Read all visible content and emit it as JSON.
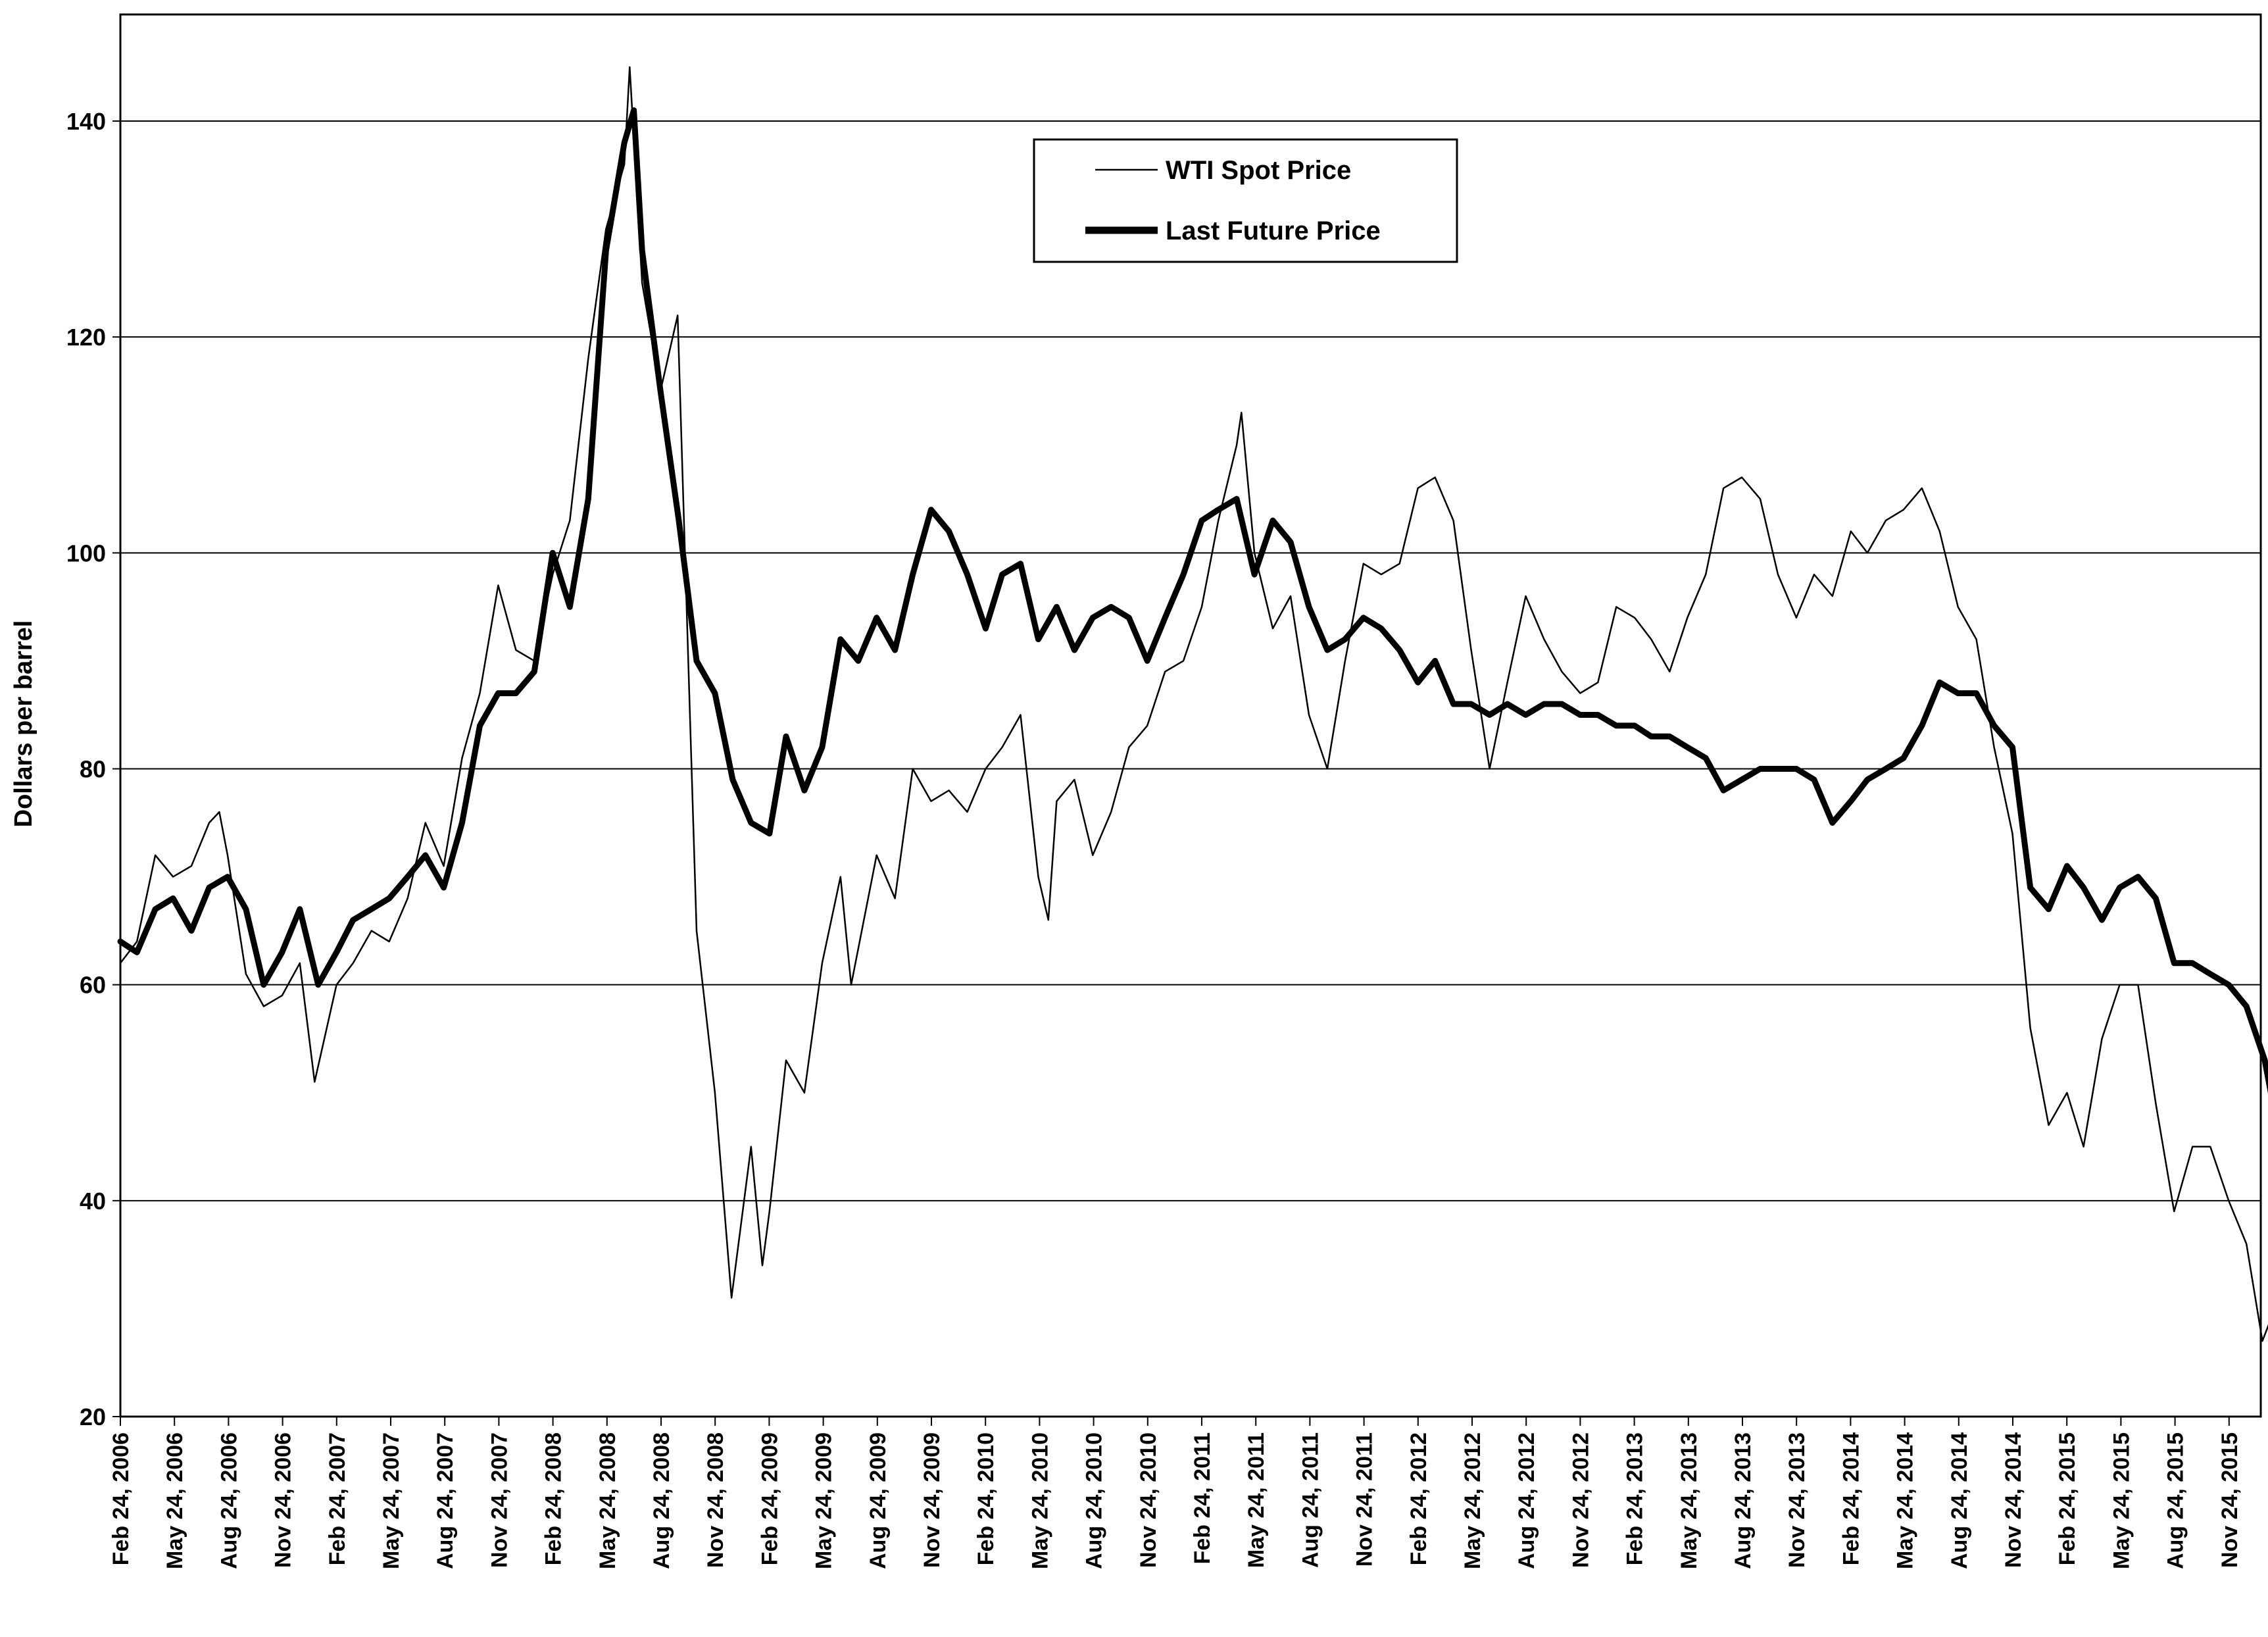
{
  "chart_data": {
    "type": "line",
    "title": "",
    "xlabel": "",
    "ylabel": "Dollars per barrel",
    "ylim": [
      20,
      145
    ],
    "yticks": [
      20,
      40,
      60,
      80,
      100,
      120,
      140
    ],
    "grid": "horizontal",
    "legend_position": "top-center",
    "xticks": [
      "Feb 24, 2006",
      "May 24, 2006",
      "Aug 24, 2006",
      "Nov 24, 2006",
      "Feb 24, 2007",
      "May 24, 2007",
      "Aug 24, 2007",
      "Nov 24, 2007",
      "Feb 24, 2008",
      "May 24, 2008",
      "Aug 24, 2008",
      "Nov 24, 2008",
      "Feb 24, 2009",
      "May 24, 2009",
      "Aug 24, 2009",
      "Nov 24, 2009",
      "Feb 24, 2010",
      "May 24, 2010",
      "Aug 24, 2010",
      "Nov 24, 2010",
      "Feb 24, 2011",
      "May 24, 2011",
      "Aug 24, 2011",
      "Nov 24, 2011",
      "Feb 24, 2012",
      "May 24, 2012",
      "Aug 24, 2012",
      "Nov 24, 2012",
      "Feb 24, 2013",
      "May 24, 2013",
      "Aug 24, 2013",
      "Nov 24, 2013",
      "Feb 24, 2014",
      "May 24, 2014",
      "Aug 24, 2014",
      "Nov 24, 2014",
      "Feb 24, 2015",
      "May 24, 2015",
      "Aug 24, 2015",
      "Nov 24, 2015"
    ],
    "x_last": "Feb 24, 2016",
    "series": [
      {
        "name": "WTI Spot Price",
        "style": "thin",
        "color": "#000000",
        "points": [
          [
            "Feb 24, 2006",
            62
          ],
          [
            "Mar 24, 2006",
            64
          ],
          [
            "Apr 24, 2006",
            72
          ],
          [
            "May 24, 2006",
            70
          ],
          [
            "Jun 24, 2006",
            71
          ],
          [
            "Jul 24, 2006",
            75
          ],
          [
            "Aug 10, 2006",
            76
          ],
          [
            "Aug 24, 2006",
            72
          ],
          [
            "Sep 24, 2006",
            61
          ],
          [
            "Oct 24, 2006",
            58
          ],
          [
            "Nov 24, 2006",
            59
          ],
          [
            "Dec 24, 2006",
            62
          ],
          [
            "Jan 18, 2007",
            51
          ],
          [
            "Feb 24, 2007",
            60
          ],
          [
            "Mar 24, 2007",
            62
          ],
          [
            "Apr 24, 2007",
            65
          ],
          [
            "May 24, 2007",
            64
          ],
          [
            "Jun 24, 2007",
            68
          ],
          [
            "Jul 24, 2007",
            75
          ],
          [
            "Aug 24, 2007",
            71
          ],
          [
            "Sep 24, 2007",
            81
          ],
          [
            "Oct 24, 2007",
            87
          ],
          [
            "Nov 24, 2007",
            97
          ],
          [
            "Dec 24, 2007",
            91
          ],
          [
            "Jan 24, 2008",
            90
          ],
          [
            "Feb 24, 2008",
            98
          ],
          [
            "Mar 24, 2008",
            103
          ],
          [
            "Apr 24, 2008",
            118
          ],
          [
            "May 24, 2008",
            130
          ],
          [
            "Jun 24, 2008",
            136
          ],
          [
            "Jul 3, 2008",
            145
          ],
          [
            "Jul 24, 2008",
            125
          ],
          [
            "Aug 24, 2008",
            115
          ],
          [
            "Sep 22, 2008",
            122
          ],
          [
            "Oct 24, 2008",
            65
          ],
          [
            "Nov 24, 2008",
            50
          ],
          [
            "Dec 22, 2008",
            31
          ],
          [
            "Jan 24, 2009",
            45
          ],
          [
            "Feb 12, 2009",
            34
          ],
          [
            "Feb 24, 2009",
            39
          ],
          [
            "Mar 24, 2009",
            53
          ],
          [
            "Apr 24, 2009",
            50
          ],
          [
            "May 24, 2009",
            62
          ],
          [
            "Jun 24, 2009",
            70
          ],
          [
            "Jul 12, 2009",
            60
          ],
          [
            "Aug 24, 2009",
            72
          ],
          [
            "Sep 24, 2009",
            68
          ],
          [
            "Oct 24, 2009",
            80
          ],
          [
            "Nov 24, 2009",
            77
          ],
          [
            "Dec 24, 2009",
            78
          ],
          [
            "Jan 24, 2010",
            76
          ],
          [
            "Feb 24, 2010",
            80
          ],
          [
            "Mar 24, 2010",
            82
          ],
          [
            "Apr 24, 2010",
            85
          ],
          [
            "May 24, 2010",
            70
          ],
          [
            "Jun 10, 2010",
            66
          ],
          [
            "Jun 24, 2010",
            77
          ],
          [
            "Jul 24, 2010",
            79
          ],
          [
            "Aug 24, 2010",
            72
          ],
          [
            "Sep 24, 2010",
            76
          ],
          [
            "Oct 24, 2010",
            82
          ],
          [
            "Nov 24, 2010",
            84
          ],
          [
            "Dec 24, 2010",
            89
          ],
          [
            "Jan 24, 2011",
            90
          ],
          [
            "Feb 24, 2011",
            95
          ],
          [
            "Mar 24, 2011",
            103
          ],
          [
            "Apr 24, 2011",
            110
          ],
          [
            "May 2, 2011",
            113
          ],
          [
            "May 24, 2011",
            100
          ],
          [
            "Jun 24, 2011",
            93
          ],
          [
            "Jul 24, 2011",
            96
          ],
          [
            "Aug 24, 2011",
            85
          ],
          [
            "Sep 24, 2011",
            80
          ],
          [
            "Oct 24, 2011",
            90
          ],
          [
            "Nov 24, 2011",
            99
          ],
          [
            "Dec 24, 2011",
            98
          ],
          [
            "Jan 24, 2012",
            99
          ],
          [
            "Feb 24, 2012",
            106
          ],
          [
            "Mar 24, 2012",
            107
          ],
          [
            "Apr 24, 2012",
            103
          ],
          [
            "May 24, 2012",
            91
          ],
          [
            "Jun 24, 2012",
            80
          ],
          [
            "Jul 24, 2012",
            88
          ],
          [
            "Aug 24, 2012",
            96
          ],
          [
            "Sep 24, 2012",
            92
          ],
          [
            "Oct 24, 2012",
            89
          ],
          [
            "Nov 24, 2012",
            87
          ],
          [
            "Dec 24, 2012",
            88
          ],
          [
            "Jan 24, 2013",
            95
          ],
          [
            "Feb 24, 2013",
            94
          ],
          [
            "Mar 24, 2013",
            92
          ],
          [
            "Apr 24, 2013",
            89
          ],
          [
            "May 24, 2013",
            94
          ],
          [
            "Jun 24, 2013",
            98
          ],
          [
            "Jul 24, 2013",
            106
          ],
          [
            "Aug 24, 2013",
            107
          ],
          [
            "Sep 24, 2013",
            105
          ],
          [
            "Oct 24, 2013",
            98
          ],
          [
            "Nov 24, 2013",
            94
          ],
          [
            "Dec 24, 2013",
            98
          ],
          [
            "Jan 24, 2014",
            96
          ],
          [
            "Feb 24, 2014",
            102
          ],
          [
            "Mar 24, 2014",
            100
          ],
          [
            "Apr 24, 2014",
            103
          ],
          [
            "May 24, 2014",
            104
          ],
          [
            "Jun 24, 2014",
            106
          ],
          [
            "Jul 24, 2014",
            102
          ],
          [
            "Aug 24, 2014",
            95
          ],
          [
            "Sep 24, 2014",
            92
          ],
          [
            "Oct 24, 2014",
            82
          ],
          [
            "Nov 24, 2014",
            74
          ],
          [
            "Dec 24, 2014",
            56
          ],
          [
            "Jan 24, 2015",
            47
          ],
          [
            "Feb 24, 2015",
            50
          ],
          [
            "Mar 24, 2015",
            45
          ],
          [
            "Apr 24, 2015",
            55
          ],
          [
            "May 24, 2015",
            60
          ],
          [
            "Jun 24, 2015",
            60
          ],
          [
            "Jul 24, 2015",
            49
          ],
          [
            "Aug 24, 2015",
            39
          ],
          [
            "Sep 24, 2015",
            45
          ],
          [
            "Oct 24, 2015",
            45
          ],
          [
            "Nov 24, 2015",
            40
          ],
          [
            "Dec 24, 2015",
            36
          ],
          [
            "Jan 20, 2016",
            27
          ],
          [
            "Feb 24, 2016",
            32
          ]
        ]
      },
      {
        "name": "Last Future Price",
        "style": "thick",
        "color": "#000000",
        "points": [
          [
            "Feb 24, 2006",
            64
          ],
          [
            "Mar 24, 2006",
            63
          ],
          [
            "Apr 24, 2006",
            67
          ],
          [
            "May 24, 2006",
            68
          ],
          [
            "Jun 24, 2006",
            65
          ],
          [
            "Jul 24, 2006",
            69
          ],
          [
            "Aug 24, 2006",
            70
          ],
          [
            "Sep 24, 2006",
            67
          ],
          [
            "Oct 24, 2006",
            60
          ],
          [
            "Nov 24, 2006",
            63
          ],
          [
            "Dec 24, 2006",
            67
          ],
          [
            "Jan 24, 2007",
            60
          ],
          [
            "Feb 24, 2007",
            63
          ],
          [
            "Mar 24, 2007",
            66
          ],
          [
            "Apr 24, 2007",
            67
          ],
          [
            "May 24, 2007",
            68
          ],
          [
            "Jun 24, 2007",
            70
          ],
          [
            "Jul 24, 2007",
            72
          ],
          [
            "Aug 24, 2007",
            69
          ],
          [
            "Sep 24, 2007",
            75
          ],
          [
            "Oct 24, 2007",
            84
          ],
          [
            "Nov 24, 2007",
            87
          ],
          [
            "Dec 24, 2007",
            87
          ],
          [
            "Jan 24, 2008",
            89
          ],
          [
            "Feb 24, 2008",
            100
          ],
          [
            "Mar 24, 2008",
            95
          ],
          [
            "Apr 24, 2008",
            105
          ],
          [
            "May 24, 2008",
            128
          ],
          [
            "Jun 24, 2008",
            138
          ],
          [
            "Jul 10, 2008",
            141
          ],
          [
            "Jul 24, 2008",
            128
          ],
          [
            "Aug 24, 2008",
            115
          ],
          [
            "Sep 24, 2008",
            103
          ],
          [
            "Oct 24, 2008",
            90
          ],
          [
            "Nov 24, 2008",
            87
          ],
          [
            "Dec 24, 2008",
            79
          ],
          [
            "Jan 24, 2009",
            75
          ],
          [
            "Feb 24, 2009",
            74
          ],
          [
            "Mar 24, 2009",
            83
          ],
          [
            "Apr 24, 2009",
            78
          ],
          [
            "May 24, 2009",
            82
          ],
          [
            "Jun 24, 2009",
            92
          ],
          [
            "Jul 24, 2009",
            90
          ],
          [
            "Aug 24, 2009",
            94
          ],
          [
            "Sep 24, 2009",
            91
          ],
          [
            "Oct 24, 2009",
            98
          ],
          [
            "Nov 24, 2009",
            104
          ],
          [
            "Dec 24, 2009",
            102
          ],
          [
            "Jan 24, 2010",
            98
          ],
          [
            "Feb 24, 2010",
            93
          ],
          [
            "Mar 24, 2010",
            98
          ],
          [
            "Apr 24, 2010",
            99
          ],
          [
            "May 24, 2010",
            92
          ],
          [
            "Jun 24, 2010",
            95
          ],
          [
            "Jul 24, 2010",
            91
          ],
          [
            "Aug 24, 2010",
            94
          ],
          [
            "Sep 24, 2010",
            95
          ],
          [
            "Oct 24, 2010",
            94
          ],
          [
            "Nov 24, 2010",
            90
          ],
          [
            "Dec 24, 2010",
            94
          ],
          [
            "Jan 24, 2011",
            98
          ],
          [
            "Feb 24, 2011",
            103
          ],
          [
            "Mar 24, 2011",
            104
          ],
          [
            "Apr 24, 2011",
            105
          ],
          [
            "May 24, 2011",
            98
          ],
          [
            "Jun 24, 2011",
            103
          ],
          [
            "Jul 24, 2011",
            101
          ],
          [
            "Aug 24, 2011",
            95
          ],
          [
            "Sep 24, 2011",
            91
          ],
          [
            "Oct 24, 2011",
            92
          ],
          [
            "Nov 24, 2011",
            94
          ],
          [
            "Dec 24, 2011",
            93
          ],
          [
            "Jan 24, 2012",
            91
          ],
          [
            "Feb 24, 2012",
            88
          ],
          [
            "Mar 24, 2012",
            90
          ],
          [
            "Apr 24, 2012",
            86
          ],
          [
            "May 24, 2012",
            86
          ],
          [
            "Jun 24, 2012",
            85
          ],
          [
            "Jul 24, 2012",
            86
          ],
          [
            "Aug 24, 2012",
            85
          ],
          [
            "Sep 24, 2012",
            86
          ],
          [
            "Oct 24, 2012",
            86
          ],
          [
            "Nov 24, 2012",
            85
          ],
          [
            "Dec 24, 2012",
            85
          ],
          [
            "Jan 24, 2013",
            84
          ],
          [
            "Feb 24, 2013",
            84
          ],
          [
            "Mar 24, 2013",
            83
          ],
          [
            "Apr 24, 2013",
            83
          ],
          [
            "May 24, 2013",
            82
          ],
          [
            "Jun 24, 2013",
            81
          ],
          [
            "Jul 24, 2013",
            78
          ],
          [
            "Aug 24, 2013",
            79
          ],
          [
            "Sep 24, 2013",
            80
          ],
          [
            "Oct 24, 2013",
            80
          ],
          [
            "Nov 24, 2013",
            80
          ],
          [
            "Dec 24, 2013",
            79
          ],
          [
            "Jan 24, 2014",
            75
          ],
          [
            "Feb 24, 2014",
            77
          ],
          [
            "Mar 24, 2014",
            79
          ],
          [
            "Apr 24, 2014",
            80
          ],
          [
            "May 24, 2014",
            81
          ],
          [
            "Jun 24, 2014",
            84
          ],
          [
            "Jul 24, 2014",
            88
          ],
          [
            "Aug 24, 2014",
            87
          ],
          [
            "Sep 24, 2014",
            87
          ],
          [
            "Oct 24, 2014",
            84
          ],
          [
            "Nov 24, 2014",
            82
          ],
          [
            "Dec 24, 2014",
            69
          ],
          [
            "Jan 24, 2015",
            67
          ],
          [
            "Feb 24, 2015",
            71
          ],
          [
            "Mar 24, 2015",
            69
          ],
          [
            "Apr 24, 2015",
            66
          ],
          [
            "May 24, 2015",
            69
          ],
          [
            "Jun 24, 2015",
            70
          ],
          [
            "Jul 24, 2015",
            68
          ],
          [
            "Aug 24, 2015",
            62
          ],
          [
            "Sep 24, 2015",
            62
          ],
          [
            "Oct 24, 2015",
            61
          ],
          [
            "Nov 24, 2015",
            60
          ],
          [
            "Dec 24, 2015",
            58
          ],
          [
            "Jan 24, 2016",
            53
          ],
          [
            "Feb 10, 2016",
            48
          ],
          [
            "Feb 24, 2016",
            52
          ]
        ]
      }
    ]
  }
}
